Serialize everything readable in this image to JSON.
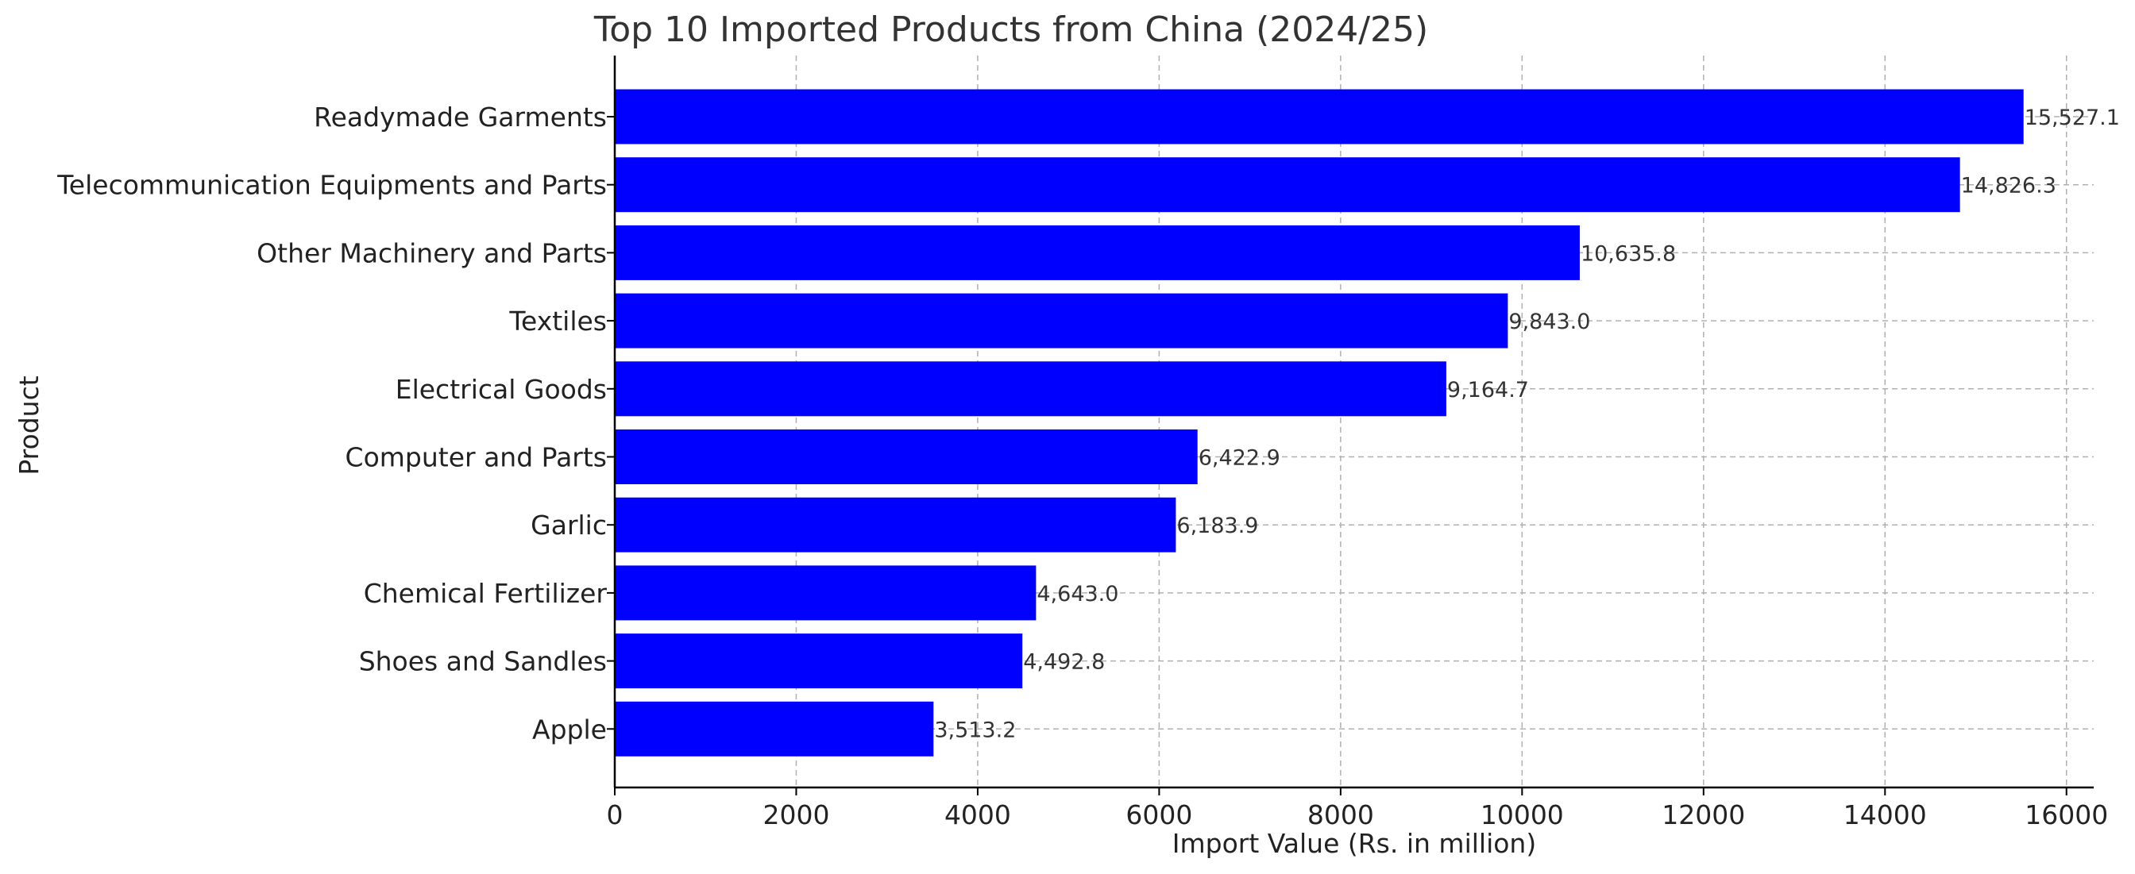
{
  "chart_data": {
    "type": "bar",
    "orientation": "horizontal",
    "title": "Top 10 Imported Products from China (2024/25)",
    "xlabel": "Import Value (Rs. in million)",
    "ylabel": "Product",
    "categories": [
      "Readymade Garments",
      "Telecommunication Equipments and Parts",
      "Other Machinery and Parts",
      "Textiles",
      "Electrical Goods",
      "Computer and Parts",
      "Garlic",
      "Chemical Fertilizer",
      "Shoes and Sandles",
      "Apple"
    ],
    "values": [
      15527.1,
      14826.3,
      10635.8,
      9843.0,
      9164.7,
      6422.9,
      6183.9,
      4643.0,
      4492.8,
      3513.2
    ],
    "value_labels": [
      "15,527.1",
      "14,826.3",
      "10,635.8",
      "9,843.0",
      "9,164.7",
      "6,422.9",
      "6,183.9",
      "4,643.0",
      "4,492.8",
      "3,513.2"
    ],
    "xticks": [
      0,
      2000,
      4000,
      6000,
      8000,
      10000,
      12000,
      14000,
      16000
    ],
    "xlim": [
      0,
      16300
    ],
    "grid": true,
    "bar_color": "#0000ff"
  }
}
